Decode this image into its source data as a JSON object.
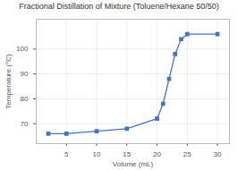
{
  "chart_data": {
    "type": "line",
    "title": "Fractional Distillation of Mixture (Toluene/Hexane 50/50)",
    "xlabel": "Volume (mL)",
    "ylabel": "Temperature (°C)",
    "x": [
      2,
      5,
      10,
      15,
      20,
      21,
      22,
      23,
      24,
      25,
      30
    ],
    "values": [
      66,
      66,
      67,
      68,
      72,
      78,
      88,
      98,
      104,
      106,
      106
    ],
    "color": "#4472c4",
    "marker": "square",
    "xlim": [
      0,
      32
    ],
    "ylim": [
      62,
      112
    ],
    "xticks": [
      5,
      10,
      15,
      20,
      25,
      30
    ],
    "yticks": [
      70,
      80,
      90,
      100
    ],
    "grid": true
  }
}
